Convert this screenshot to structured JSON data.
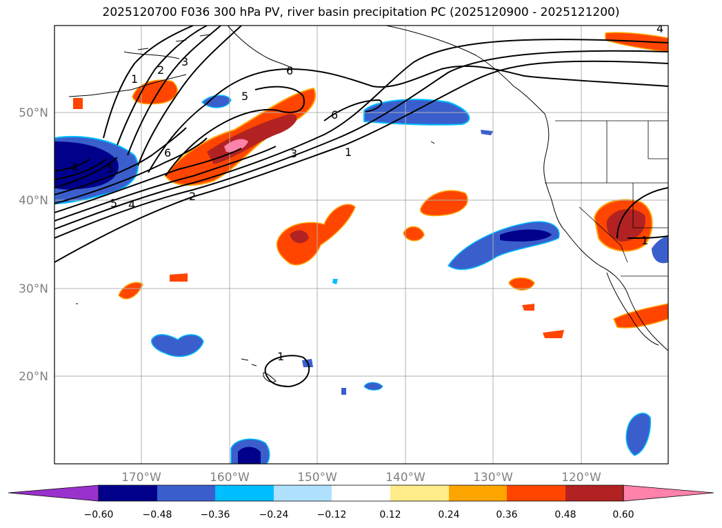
{
  "title": "2025120700 F036 300 hPa PV, river basin precipitation PC (2025120900 - 2025121200)",
  "lat_labels": [
    "50°N",
    "40°N",
    "30°N",
    "20°N"
  ],
  "lon_labels": [
    "170°W",
    "160°W",
    "150°W",
    "140°W",
    "130°W",
    "120°W"
  ],
  "colorbar": {
    "labels": [
      "−0.60",
      "−0.48",
      "−0.36",
      "−0.24",
      "−0.12",
      "0.12",
      "0.24",
      "0.36",
      "0.48",
      "0.60"
    ],
    "colors": [
      "#9932cc",
      "#00008b",
      "#3a5fcd",
      "#00bfff",
      "#b0e2ff",
      "#ffffff",
      "#ffec8b",
      "#ffa500",
      "#ff4500",
      "#b22222",
      "#ff82ab"
    ]
  },
  "contour_labels": [
    "1",
    "2",
    "3",
    "4",
    "5",
    "6",
    "5",
    "6",
    "3",
    "1",
    "5",
    "4",
    "2",
    "6",
    "1",
    "1",
    "4"
  ]
}
